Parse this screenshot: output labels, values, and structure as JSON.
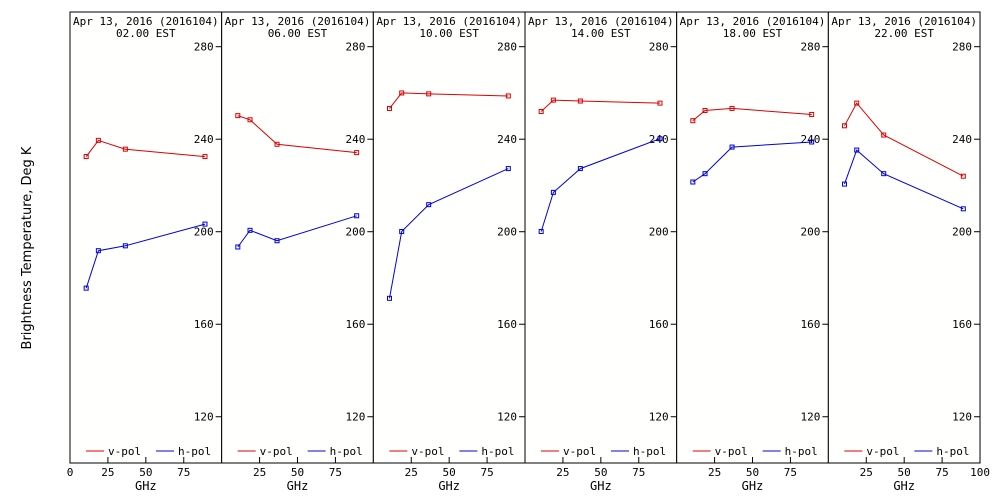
{
  "ylabel": "Brightness Temperature, Deg K",
  "colors": {
    "vpol": "#dd0000",
    "hpol": "#0000dd",
    "frame": "#000000",
    "background": "#fffffe"
  },
  "chart_data": [
    {
      "type": "line",
      "title": "Apr 13, 2016 (2016104)",
      "subtitle": "02.00 EST",
      "xlabel": "GHz",
      "ylabel": "Brightness Temperature, Deg K",
      "xlim": [
        0,
        100
      ],
      "ylim": [
        100,
        295
      ],
      "x_ticks": [
        "0",
        "25",
        "50",
        "75"
      ],
      "y_ticks": [
        "120",
        "160",
        "200",
        "240",
        "280"
      ],
      "x": [
        10.65,
        18.7,
        36.5,
        89.0
      ],
      "series": [
        {
          "name": "v-pol",
          "values": [
            232.5,
            239.5,
            235.7,
            232.5
          ]
        },
        {
          "name": "h-pol",
          "values": [
            175.6,
            191.8,
            193.9,
            203.3
          ]
        }
      ],
      "legend": "bottom"
    },
    {
      "type": "line",
      "title": "Apr 13, 2016 (2016104)",
      "subtitle": "06.00 EST",
      "xlabel": "GHz",
      "ylabel": "",
      "xlim": [
        0,
        100
      ],
      "ylim": [
        100,
        295
      ],
      "x_ticks": [
        "25",
        "50",
        "75"
      ],
      "y_ticks": [
        "120",
        "160",
        "200",
        "240",
        "280"
      ],
      "x": [
        10.65,
        18.7,
        36.5,
        89.0
      ],
      "series": [
        {
          "name": "v-pol",
          "values": [
            250.2,
            248.4,
            237.8,
            234.2
          ]
        },
        {
          "name": "h-pol",
          "values": [
            193.4,
            200.6,
            196.1,
            206.9
          ]
        }
      ],
      "legend": "bottom"
    },
    {
      "type": "line",
      "title": "Apr 13, 2016 (2016104)",
      "subtitle": "10.00 EST",
      "xlabel": "GHz",
      "ylabel": "",
      "xlim": [
        0,
        100
      ],
      "ylim": [
        100,
        295
      ],
      "x_ticks": [
        "25",
        "50",
        "75"
      ],
      "y_ticks": [
        "120",
        "160",
        "200",
        "240",
        "280"
      ],
      "x": [
        10.65,
        18.7,
        36.5,
        89.0
      ],
      "series": [
        {
          "name": "v-pol",
          "values": [
            253.3,
            260.0,
            259.6,
            258.7
          ]
        },
        {
          "name": "h-pol",
          "values": [
            171.2,
            200.1,
            211.7,
            227.3
          ]
        }
      ],
      "legend": "bottom"
    },
    {
      "type": "line",
      "title": "Apr 13, 2016 (2016104)",
      "subtitle": "14.00 EST",
      "xlabel": "GHz",
      "ylabel": "",
      "xlim": [
        0,
        100
      ],
      "ylim": [
        100,
        295
      ],
      "x_ticks": [
        "25",
        "50",
        "75"
      ],
      "y_ticks": [
        "120",
        "160",
        "200",
        "240",
        "280"
      ],
      "x": [
        10.65,
        18.7,
        36.5,
        89.0
      ],
      "series": [
        {
          "name": "v-pol",
          "values": [
            252.0,
            256.9,
            256.5,
            255.6
          ]
        },
        {
          "name": "h-pol",
          "values": [
            200.1,
            217.0,
            227.3,
            240.2
          ]
        }
      ],
      "legend": "bottom"
    },
    {
      "type": "line",
      "title": "Apr 13, 2016 (2016104)",
      "subtitle": "18.00 EST",
      "xlabel": "GHz",
      "ylabel": "",
      "xlim": [
        0,
        100
      ],
      "ylim": [
        100,
        295
      ],
      "x_ticks": [
        "25",
        "50",
        "75"
      ],
      "y_ticks": [
        "120",
        "160",
        "200",
        "240",
        "280"
      ],
      "x": [
        10.65,
        18.7,
        36.5,
        89.0
      ],
      "series": [
        {
          "name": "v-pol",
          "values": [
            248.0,
            252.4,
            253.3,
            250.7
          ]
        },
        {
          "name": "h-pol",
          "values": [
            221.5,
            225.1,
            236.6,
            238.8
          ]
        }
      ],
      "legend": "bottom"
    },
    {
      "type": "line",
      "title": "Apr 13, 2016 (2016104)",
      "subtitle": "22.00 EST",
      "xlabel": "GHz",
      "ylabel": "",
      "xlim": [
        0,
        100
      ],
      "ylim": [
        100,
        295
      ],
      "x_ticks": [
        "25",
        "50",
        "75",
        "100"
      ],
      "y_ticks": [
        "120",
        "160",
        "200",
        "240",
        "280"
      ],
      "x": [
        10.65,
        18.7,
        36.5,
        89.0
      ],
      "series": [
        {
          "name": "v-pol",
          "values": [
            245.8,
            255.6,
            241.8,
            224.0
          ]
        },
        {
          "name": "h-pol",
          "values": [
            220.6,
            235.3,
            225.1,
            209.9
          ]
        }
      ],
      "legend": "bottom"
    }
  ]
}
